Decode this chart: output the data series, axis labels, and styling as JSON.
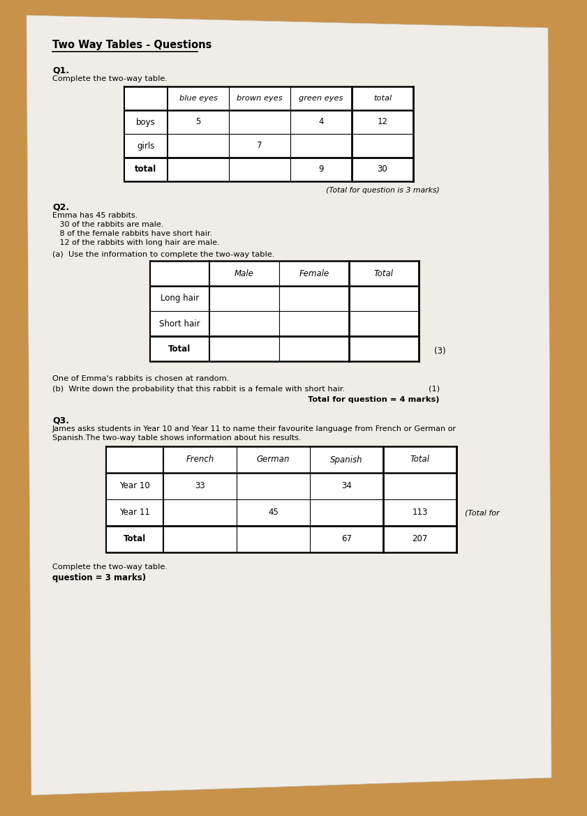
{
  "bg_color": "#c8924a",
  "paper_color": "#f0ede8",
  "title": "Two Way Tables - Questions",
  "q1_label": "Q1.",
  "q1_instruction": "Complete the two-way table.",
  "q1_marks": "(Total for question is 3 marks)",
  "q1_col_headers": [
    "blue eyes",
    "brown eyes",
    "green eyes",
    "total"
  ],
  "q1_row_headers": [
    "boys",
    "girls",
    "total"
  ],
  "q1_data": [
    [
      "5",
      "",
      "4",
      "12"
    ],
    [
      "",
      "7",
      "",
      ""
    ],
    [
      "",
      "",
      "9",
      "30"
    ]
  ],
  "q2_label": "Q2.",
  "q2_lines": [
    "Emma has 45 rabbits.",
    "   30 of the rabbits are male.",
    "   8 of the female rabbits have short hair.",
    "   12 of the rabbits with long hair are male."
  ],
  "q2a_instruction": "(a)  Use the information to complete the two-way table.",
  "q2_col_headers": [
    "Male",
    "Female",
    "Total"
  ],
  "q2_row_headers": [
    "Long hair",
    "Short hair",
    "Total"
  ],
  "q2_data": [
    [
      "",
      "",
      ""
    ],
    [
      "",
      "",
      ""
    ],
    [
      "",
      "",
      ""
    ]
  ],
  "q2a_marks": "(3)",
  "q2b_text": "One of Emma's rabbits is chosen at random.",
  "q2b_question": "(b)  Write down the probability that this rabbit is a female with short hair.",
  "q2b_marks": "(1)",
  "q2_total_marks": "Total for question = 4 marks)",
  "q3_label": "Q3.",
  "q3_text1": "James asks students in Year 10 and Year 11 to name their favourite language from French or German or",
  "q3_text2": "Spanish.The two-way table shows information about his results.",
  "q3_col_headers": [
    "French",
    "German",
    "Spanish",
    "Total"
  ],
  "q3_row_headers": [
    "Year 10",
    "Year 11",
    "Total"
  ],
  "q3_data": [
    [
      "33",
      "",
      "34",
      ""
    ],
    [
      "",
      "45",
      "",
      "113"
    ],
    [
      "",
      "",
      "67",
      "207"
    ]
  ],
  "q3_total_marks_partial": "(Total for",
  "q3_complete": "Complete the two-way table.",
  "q3_marks": "question = 3 marks)"
}
